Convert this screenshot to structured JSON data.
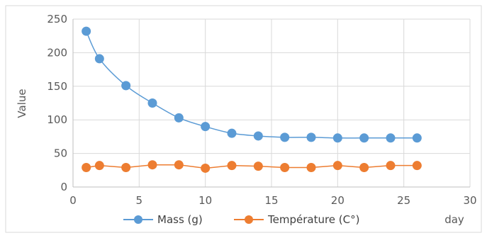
{
  "chart_data": {
    "type": "line",
    "title": "",
    "xlabel": "day",
    "ylabel": "Value",
    "xlim": [
      0,
      30
    ],
    "ylim": [
      0,
      250
    ],
    "xticks": [
      0,
      5,
      10,
      15,
      20,
      25,
      30
    ],
    "yticks": [
      0,
      50,
      100,
      150,
      200,
      250
    ],
    "grid": true,
    "legend_position": "bottom",
    "series": [
      {
        "name": "Mass (g)",
        "color": "#5B9BD5",
        "marker": "circle",
        "x": [
          1,
          2,
          4,
          6,
          8,
          10,
          12,
          14,
          16,
          18,
          20,
          22,
          24,
          26
        ],
        "y": [
          232,
          191,
          151,
          125,
          103,
          90,
          80,
          76,
          74,
          74,
          73,
          73,
          73,
          73
        ]
      },
      {
        "name": "Température (C°)",
        "color": "#ED7D31",
        "marker": "circle",
        "x": [
          1,
          2,
          4,
          6,
          8,
          10,
          12,
          14,
          16,
          18,
          20,
          22,
          24,
          26
        ],
        "y": [
          29,
          32,
          29,
          33,
          33,
          28,
          32,
          31,
          29,
          29,
          32,
          29,
          32,
          32
        ]
      }
    ]
  }
}
